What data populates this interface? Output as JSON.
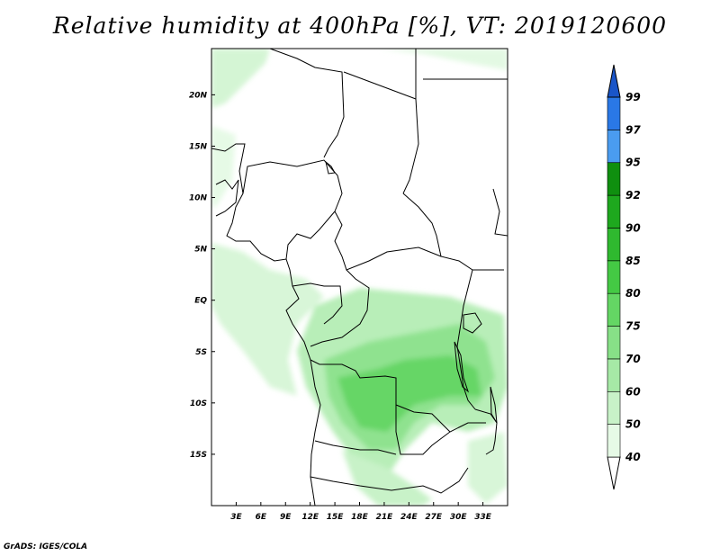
{
  "title": "Relative humidity at 400hPa [%], VT: 2019120600",
  "credit": "GrADS: IGES/COLA",
  "map": {
    "lon_range": [
      0,
      36
    ],
    "lat_range": [
      -20,
      24.5
    ],
    "lon_ticks": [
      {
        "value": 3,
        "label": "3E"
      },
      {
        "value": 6,
        "label": "6E"
      },
      {
        "value": 9,
        "label": "9E"
      },
      {
        "value": 12,
        "label": "12E"
      },
      {
        "value": 15,
        "label": "15E"
      },
      {
        "value": 18,
        "label": "18E"
      },
      {
        "value": 21,
        "label": "21E"
      },
      {
        "value": 24,
        "label": "24E"
      },
      {
        "value": 27,
        "label": "27E"
      },
      {
        "value": 30,
        "label": "30E"
      },
      {
        "value": 33,
        "label": "33E"
      }
    ],
    "lat_ticks": [
      {
        "value": 20,
        "label": "20N"
      },
      {
        "value": 15,
        "label": "15N"
      },
      {
        "value": 10,
        "label": "10N"
      },
      {
        "value": 5,
        "label": "5N"
      },
      {
        "value": 0,
        "label": "EQ"
      },
      {
        "value": -5,
        "label": "5S"
      },
      {
        "value": -10,
        "label": "10S"
      },
      {
        "value": -15,
        "label": "15S"
      }
    ]
  },
  "colorbar": {
    "levels": [
      "40",
      "50",
      "60",
      "70",
      "75",
      "80",
      "85",
      "90",
      "92",
      "95",
      "97",
      "99"
    ],
    "colors": [
      "#ffffff",
      "#e6fae6",
      "#c8f2c8",
      "#a6e9a6",
      "#87e087",
      "#64d664",
      "#44c944",
      "#2fb92f",
      "#1ea81e",
      "#0f8f0f",
      "#4a9cf0",
      "#2a78e6",
      "#1a55c8"
    ]
  }
}
